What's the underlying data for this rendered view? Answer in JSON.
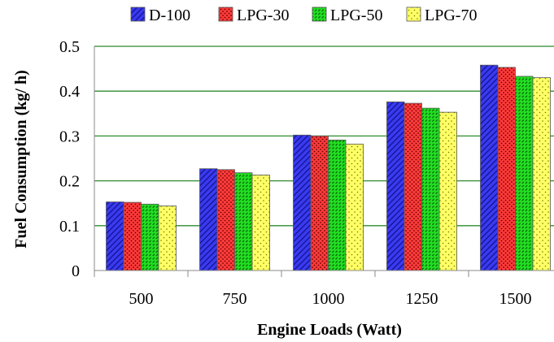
{
  "chart_data": {
    "type": "bar",
    "title": "",
    "xlabel": "Engine Loads (Watt)",
    "ylabel": "Fuel Consumption (kg/ h)",
    "categories": [
      "500",
      "750",
      "1000",
      "1250",
      "1500"
    ],
    "series": [
      {
        "name": "D-100",
        "values": [
          0.153,
          0.227,
          0.302,
          0.376,
          0.458
        ],
        "color": "#2b2bd6"
      },
      {
        "name": "LPG-30",
        "values": [
          0.152,
          0.225,
          0.3,
          0.373,
          0.453
        ],
        "color": "#ff3333"
      },
      {
        "name": "LPG-50",
        "values": [
          0.148,
          0.218,
          0.291,
          0.362,
          0.433
        ],
        "color": "#22dd22"
      },
      {
        "name": "LPG-70",
        "values": [
          0.144,
          0.213,
          0.282,
          0.353,
          0.43
        ],
        "color": "#ffff55"
      }
    ],
    "ylim": [
      0,
      0.5
    ],
    "yticks": [
      "0",
      "0.1",
      "0.2",
      "0.3",
      "0.4",
      "0.5"
    ],
    "grid": "horizontal",
    "legend": "top"
  }
}
